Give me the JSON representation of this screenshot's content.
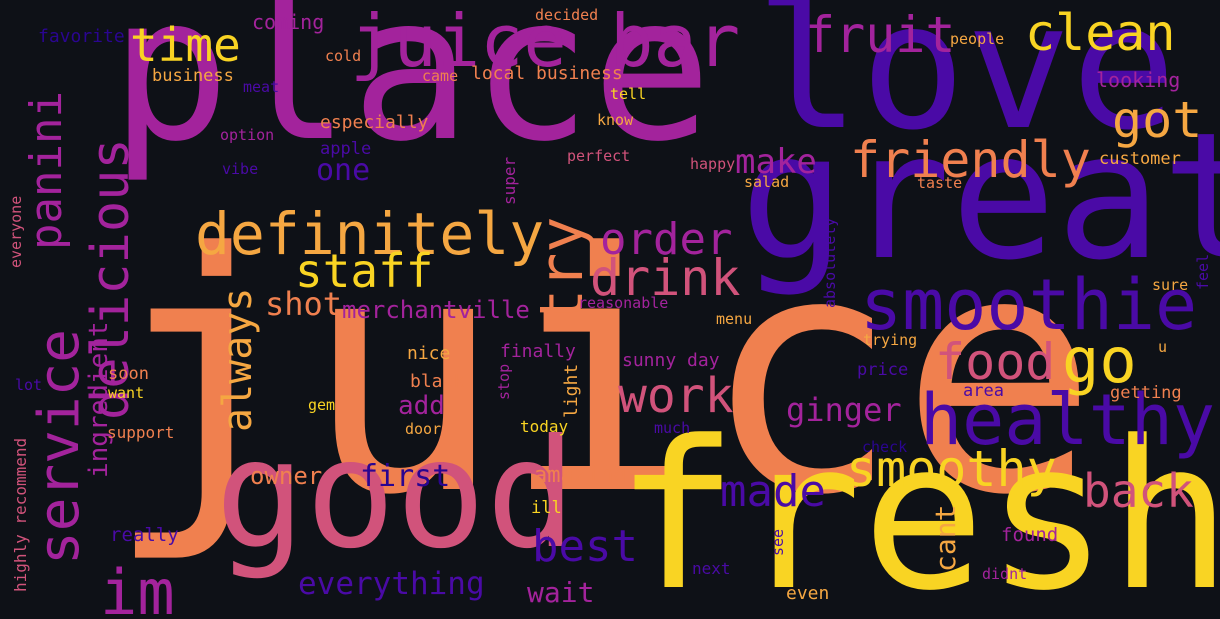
{
  "palette": [
    "#f9d423",
    "#f0804f",
    "#d1537b",
    "#a3239c",
    "#4a0aa6",
    "#2a0590"
  ],
  "words": [
    {
      "text": "juice",
      "color": "#f0804f"
    },
    {
      "text": "place",
      "color": "#a3239c"
    },
    {
      "text": "great",
      "color": "#4a0aa6"
    },
    {
      "text": "love",
      "color": "#4a0aa6"
    },
    {
      "text": "fresh",
      "color": "#f9d423"
    },
    {
      "text": "good",
      "color": "#d1537b"
    },
    {
      "text": "juice bar",
      "color": "#a3239c"
    },
    {
      "text": "smoothie",
      "color": "#4a0aa6"
    },
    {
      "text": "healthy",
      "color": "#4a0aa6"
    },
    {
      "text": "definitely",
      "color": "#f5a742"
    },
    {
      "text": "friendly",
      "color": "#f0804f"
    },
    {
      "text": "fruit",
      "color": "#a3239c"
    },
    {
      "text": "clean",
      "color": "#f9d423"
    },
    {
      "text": "time",
      "color": "#f9d423"
    },
    {
      "text": "service",
      "color": "#a3239c"
    },
    {
      "text": "delicious",
      "color": "#a3239c"
    },
    {
      "text": "panini",
      "color": "#a3239c"
    },
    {
      "text": "drink",
      "color": "#d1537b"
    },
    {
      "text": "staff",
      "color": "#f9d423"
    },
    {
      "text": "order",
      "color": "#a3239c"
    },
    {
      "text": "try",
      "color": "#f0804f"
    },
    {
      "text": "go",
      "color": "#f9d423"
    },
    {
      "text": "got",
      "color": "#f5a742"
    },
    {
      "text": "food",
      "color": "#d1537b"
    },
    {
      "text": "smoothy",
      "color": "#f9d423"
    },
    {
      "text": "im",
      "color": "#a3239c"
    },
    {
      "text": "best",
      "color": "#4a0aa6"
    },
    {
      "text": "work",
      "color": "#d1537b"
    },
    {
      "text": "back",
      "color": "#d1537b"
    },
    {
      "text": "made",
      "color": "#4a0aa6"
    },
    {
      "text": "always",
      "color": "#f5a742"
    },
    {
      "text": "make",
      "color": "#a3239c"
    },
    {
      "text": "one",
      "color": "#4a0aa6"
    },
    {
      "text": "ginger",
      "color": "#a3239c"
    },
    {
      "text": "everything",
      "color": "#4a0aa6"
    },
    {
      "text": "shot",
      "color": "#f0804f"
    },
    {
      "text": "merchantville",
      "color": "#a3239c"
    },
    {
      "text": "first",
      "color": "#2a0590"
    },
    {
      "text": "ingredient",
      "color": "#a3239c"
    },
    {
      "text": "add",
      "color": "#a3239c"
    },
    {
      "text": "wait",
      "color": "#a3239c"
    },
    {
      "text": "cant",
      "color": "#f5a742"
    },
    {
      "text": "owner",
      "color": "#f0804f"
    },
    {
      "text": "amazing",
      "color": "#f0804f"
    },
    {
      "text": "favorite",
      "color": "#2a0590"
    },
    {
      "text": "coming",
      "color": "#a3239c"
    },
    {
      "text": "decided",
      "color": "#f0804f"
    },
    {
      "text": "people",
      "color": "#f5a742"
    },
    {
      "text": "cold",
      "color": "#f0804f"
    },
    {
      "text": "business",
      "color": "#f5a742"
    },
    {
      "text": "came",
      "color": "#f0804f"
    },
    {
      "text": "local business",
      "color": "#f0804f"
    },
    {
      "text": "looking",
      "color": "#a3239c"
    },
    {
      "text": "meat",
      "color": "#4a0aa6"
    },
    {
      "text": "tell",
      "color": "#f9d423"
    },
    {
      "text": "especially",
      "color": "#f0804f"
    },
    {
      "text": "know",
      "color": "#f5a742"
    },
    {
      "text": "option",
      "color": "#a3239c"
    },
    {
      "text": "apple",
      "color": "#4a0aa6"
    },
    {
      "text": "perfect",
      "color": "#d1537b"
    },
    {
      "text": "happy",
      "color": "#d1537b"
    },
    {
      "text": "customer",
      "color": "#f5a742"
    },
    {
      "text": "vibe",
      "color": "#4a0aa6"
    },
    {
      "text": "super",
      "color": "#a3239c"
    },
    {
      "text": "salad",
      "color": "#f5a742"
    },
    {
      "text": "taste",
      "color": "#f0804f"
    },
    {
      "text": "everyone",
      "color": "#d1537b"
    },
    {
      "text": "reasonable",
      "color": "#a3239c"
    },
    {
      "text": "absolutely",
      "color": "#4a0aa6"
    },
    {
      "text": "sure",
      "color": "#f5a742"
    },
    {
      "text": "feel",
      "color": "#4a0aa6"
    },
    {
      "text": "menu",
      "color": "#f5a742"
    },
    {
      "text": "trying",
      "color": "#f5a742"
    },
    {
      "text": "u",
      "color": "#f5a742"
    },
    {
      "text": "nice",
      "color": "#f5a742"
    },
    {
      "text": "finally",
      "color": "#a3239c"
    },
    {
      "text": "sunny day",
      "color": "#a3239c"
    },
    {
      "text": "price",
      "color": "#4a0aa6"
    },
    {
      "text": "soon",
      "color": "#f0804f"
    },
    {
      "text": "stop",
      "color": "#a3239c"
    },
    {
      "text": "light",
      "color": "#f5a742"
    },
    {
      "text": "lot",
      "color": "#4a0aa6"
    },
    {
      "text": "want",
      "color": "#f9d423"
    },
    {
      "text": "black",
      "color": "#f0804f"
    },
    {
      "text": "area",
      "color": "#4a0aa6"
    },
    {
      "text": "getting",
      "color": "#f0804f"
    },
    {
      "text": "gem",
      "color": "#f9d423"
    },
    {
      "text": "door",
      "color": "#f5a742"
    },
    {
      "text": "today",
      "color": "#f9d423"
    },
    {
      "text": "much",
      "color": "#4a0aa6"
    },
    {
      "text": "check",
      "color": "#2a0590"
    },
    {
      "text": "support",
      "color": "#f0804f"
    },
    {
      "text": "highly recommend",
      "color": "#d1537b"
    },
    {
      "text": "really",
      "color": "#4a0aa6"
    },
    {
      "text": "ill",
      "color": "#f9d423"
    },
    {
      "text": "see",
      "color": "#4a0aa6"
    },
    {
      "text": "found",
      "color": "#a3239c"
    },
    {
      "text": "next",
      "color": "#4a0aa6"
    },
    {
      "text": "didnt",
      "color": "#a3239c"
    },
    {
      "text": "even",
      "color": "#f5a742"
    }
  ]
}
